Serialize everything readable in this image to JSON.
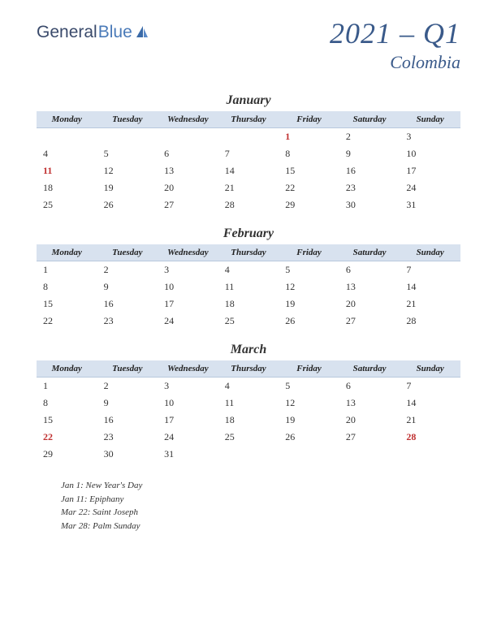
{
  "logo": {
    "part1": "General",
    "part2": "Blue"
  },
  "header": {
    "quarter": "2021 – Q1",
    "country": "Colombia"
  },
  "dayHeaders": [
    "Monday",
    "Tuesday",
    "Wednesday",
    "Thursday",
    "Friday",
    "Saturday",
    "Sunday"
  ],
  "colors": {
    "header_bg": "#d8e2ef",
    "title_color": "#3a5a8a",
    "holiday_color": "#c03030",
    "text_color": "#333333"
  },
  "months": [
    {
      "name": "January",
      "weeks": [
        [
          {
            "d": ""
          },
          {
            "d": ""
          },
          {
            "d": ""
          },
          {
            "d": ""
          },
          {
            "d": "1",
            "h": true
          },
          {
            "d": "2"
          },
          {
            "d": "3"
          }
        ],
        [
          {
            "d": "4"
          },
          {
            "d": "5"
          },
          {
            "d": "6"
          },
          {
            "d": "7"
          },
          {
            "d": "8"
          },
          {
            "d": "9"
          },
          {
            "d": "10"
          }
        ],
        [
          {
            "d": "11",
            "h": true
          },
          {
            "d": "12"
          },
          {
            "d": "13"
          },
          {
            "d": "14"
          },
          {
            "d": "15"
          },
          {
            "d": "16"
          },
          {
            "d": "17"
          }
        ],
        [
          {
            "d": "18"
          },
          {
            "d": "19"
          },
          {
            "d": "20"
          },
          {
            "d": "21"
          },
          {
            "d": "22"
          },
          {
            "d": "23"
          },
          {
            "d": "24"
          }
        ],
        [
          {
            "d": "25"
          },
          {
            "d": "26"
          },
          {
            "d": "27"
          },
          {
            "d": "28"
          },
          {
            "d": "29"
          },
          {
            "d": "30"
          },
          {
            "d": "31"
          }
        ]
      ]
    },
    {
      "name": "February",
      "weeks": [
        [
          {
            "d": "1"
          },
          {
            "d": "2"
          },
          {
            "d": "3"
          },
          {
            "d": "4"
          },
          {
            "d": "5"
          },
          {
            "d": "6"
          },
          {
            "d": "7"
          }
        ],
        [
          {
            "d": "8"
          },
          {
            "d": "9"
          },
          {
            "d": "10"
          },
          {
            "d": "11"
          },
          {
            "d": "12"
          },
          {
            "d": "13"
          },
          {
            "d": "14"
          }
        ],
        [
          {
            "d": "15"
          },
          {
            "d": "16"
          },
          {
            "d": "17"
          },
          {
            "d": "18"
          },
          {
            "d": "19"
          },
          {
            "d": "20"
          },
          {
            "d": "21"
          }
        ],
        [
          {
            "d": "22"
          },
          {
            "d": "23"
          },
          {
            "d": "24"
          },
          {
            "d": "25"
          },
          {
            "d": "26"
          },
          {
            "d": "27"
          },
          {
            "d": "28"
          }
        ]
      ]
    },
    {
      "name": "March",
      "weeks": [
        [
          {
            "d": "1"
          },
          {
            "d": "2"
          },
          {
            "d": "3"
          },
          {
            "d": "4"
          },
          {
            "d": "5"
          },
          {
            "d": "6"
          },
          {
            "d": "7"
          }
        ],
        [
          {
            "d": "8"
          },
          {
            "d": "9"
          },
          {
            "d": "10"
          },
          {
            "d": "11"
          },
          {
            "d": "12"
          },
          {
            "d": "13"
          },
          {
            "d": "14"
          }
        ],
        [
          {
            "d": "15"
          },
          {
            "d": "16"
          },
          {
            "d": "17"
          },
          {
            "d": "18"
          },
          {
            "d": "19"
          },
          {
            "d": "20"
          },
          {
            "d": "21"
          }
        ],
        [
          {
            "d": "22",
            "h": true
          },
          {
            "d": "23"
          },
          {
            "d": "24"
          },
          {
            "d": "25"
          },
          {
            "d": "26"
          },
          {
            "d": "27"
          },
          {
            "d": "28",
            "h": true
          }
        ],
        [
          {
            "d": "29"
          },
          {
            "d": "30"
          },
          {
            "d": "31"
          },
          {
            "d": ""
          },
          {
            "d": ""
          },
          {
            "d": ""
          },
          {
            "d": ""
          }
        ]
      ]
    }
  ],
  "holidays": [
    "Jan 1: New Year's Day",
    "Jan 11: Epiphany",
    "Mar 22: Saint Joseph",
    "Mar 28: Palm Sunday"
  ]
}
